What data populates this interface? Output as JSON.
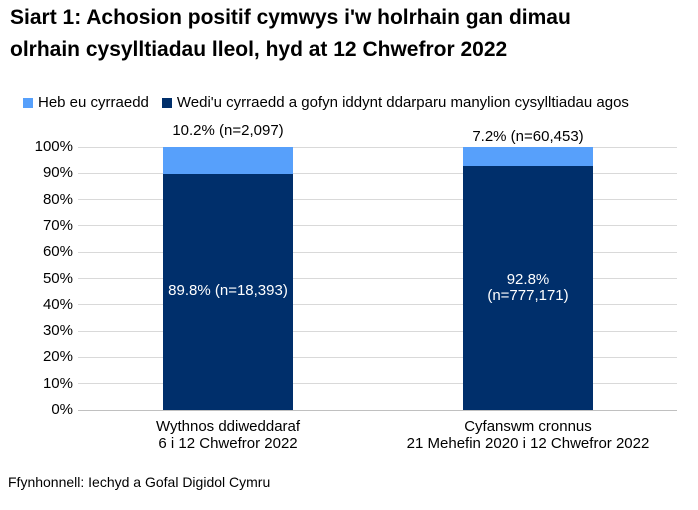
{
  "header": {
    "title_lines": [
      "Siart 1: Achosion positif cymwys i'w holrhain gan dimau",
      "olrhain cysylltiadau lleol, hyd at 12 Chwefror 2022"
    ]
  },
  "legend": {
    "items": [
      {
        "label": "Heb eu cyrraedd",
        "color": "#57a0fb"
      },
      {
        "label": "Wedi'u cyrraedd a gofyn iddynt ddarparu manylion cysylltiadau agos",
        "color": "#002f6b"
      }
    ]
  },
  "chart_data": {
    "type": "bar",
    "stacked": true,
    "title": "Siart 1: Achosion positif cymwys i'w holrhain gan dimau olrhain cysylltiadau lleol, hyd at 12 Chwefror 2022",
    "xlabel": "",
    "ylabel": "",
    "ylim": [
      0,
      100
    ],
    "ytick_step": 10,
    "ytick_suffix": "%",
    "grid": true,
    "legend_position": "top",
    "categories": [
      {
        "line1": "Wythnos ddiweddaraf",
        "line2": "6 i 12 Chwefror 2022"
      },
      {
        "line1": "Cyfanswm cronnus",
        "line2": "21 Mehefin 2020 i 12 Chwefror 2022"
      }
    ],
    "series": [
      {
        "name": "Wedi'u cyrraedd a gofyn iddynt ddarparu manylion cysylltiadau agos",
        "color": "#002f6b",
        "values": [
          89.8,
          92.8
        ],
        "counts": [
          18393,
          777171
        ]
      },
      {
        "name": "Heb eu cyrraedd",
        "color": "#57a0fb",
        "values": [
          10.2,
          7.2
        ],
        "counts": [
          2097,
          60453
        ]
      }
    ],
    "bar_labels": {
      "above": [
        "10.2% (n=2,097)",
        "7.2% (n=60,453)"
      ],
      "inside": [
        [
          "89.8% (n=18,393)"
        ],
        [
          "92.8%",
          "(n=777,171)"
        ]
      ]
    }
  },
  "footer": {
    "source": "Ffynhonnell: Iechyd a Gofal Digidol Cymru"
  }
}
